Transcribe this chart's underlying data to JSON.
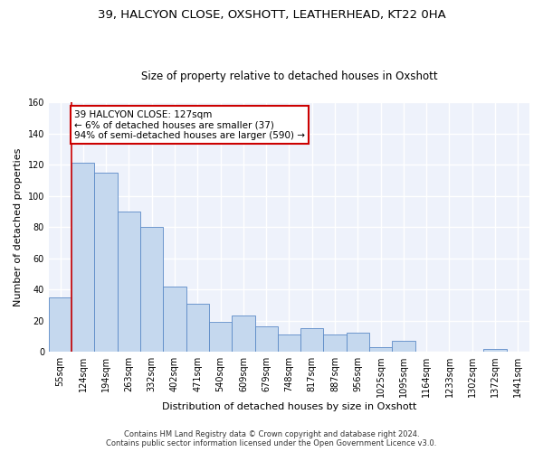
{
  "title1": "39, HALCYON CLOSE, OXSHOTT, LEATHERHEAD, KT22 0HA",
  "title2": "Size of property relative to detached houses in Oxshott",
  "xlabel": "Distribution of detached houses by size in Oxshott",
  "ylabel": "Number of detached properties",
  "footer1": "Contains HM Land Registry data © Crown copyright and database right 2024.",
  "footer2": "Contains public sector information licensed under the Open Government Licence v3.0.",
  "categories": [
    "55sqm",
    "124sqm",
    "194sqm",
    "263sqm",
    "332sqm",
    "402sqm",
    "471sqm",
    "540sqm",
    "609sqm",
    "679sqm",
    "748sqm",
    "817sqm",
    "887sqm",
    "956sqm",
    "1025sqm",
    "1095sqm",
    "1164sqm",
    "1233sqm",
    "1302sqm",
    "1372sqm",
    "1441sqm"
  ],
  "values": [
    35,
    121,
    115,
    90,
    80,
    42,
    31,
    19,
    23,
    16,
    11,
    15,
    11,
    12,
    3,
    7,
    0,
    0,
    0,
    2,
    0
  ],
  "bar_color": "#c5d8ee",
  "bar_edge_color": "#5b8ac7",
  "ylim": [
    0,
    160
  ],
  "yticks": [
    0,
    20,
    40,
    60,
    80,
    100,
    120,
    140,
    160
  ],
  "annotation_text": "39 HALCYON CLOSE: 127sqm\n← 6% of detached houses are smaller (37)\n94% of semi-detached houses are larger (590) →",
  "annotation_box_color": "#ffffff",
  "annotation_box_edge": "#cc0000",
  "vline_color": "#cc0000",
  "background_color": "#eef2fb",
  "grid_color": "#ffffff",
  "title_fontsize": 9.5,
  "subtitle_fontsize": 8.5,
  "tick_fontsize": 7,
  "ylabel_fontsize": 8,
  "xlabel_fontsize": 8,
  "footer_fontsize": 6,
  "ann_fontsize": 7.5
}
